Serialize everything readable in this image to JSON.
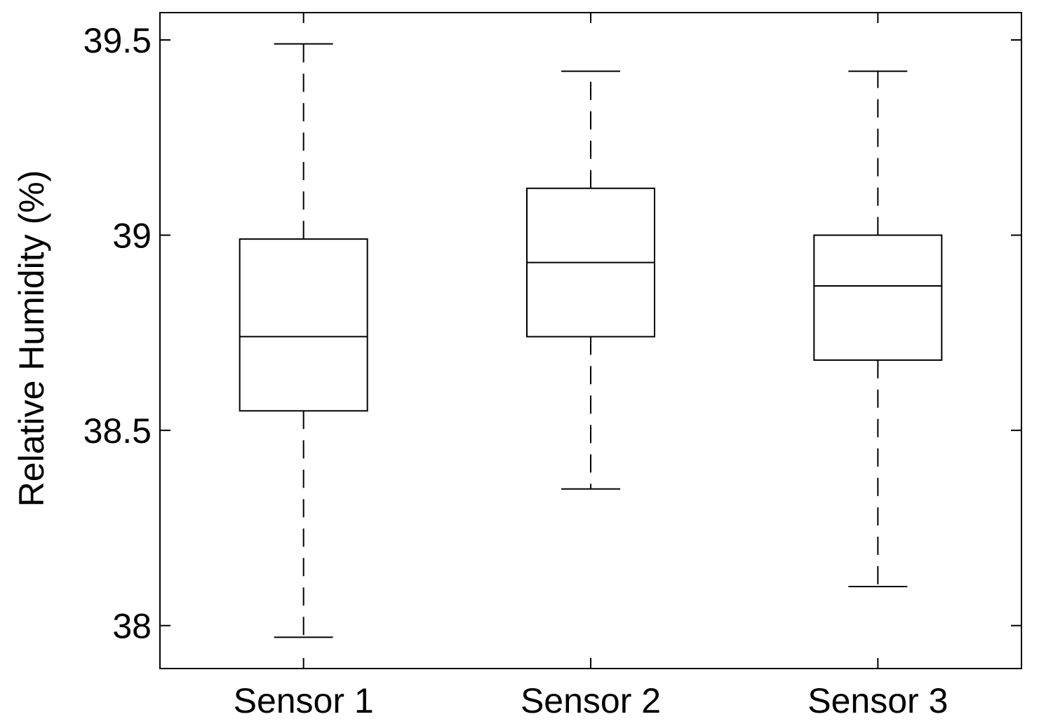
{
  "chart_data": {
    "type": "box",
    "categories": [
      "Sensor 1",
      "Sensor 2",
      "Sensor 3"
    ],
    "boxes": [
      {
        "category": "Sensor 1",
        "min": 37.97,
        "q1": 38.55,
        "median": 38.74,
        "q3": 38.99,
        "max": 39.49
      },
      {
        "category": "Sensor 2",
        "min": 38.35,
        "q1": 38.74,
        "median": 38.93,
        "q3": 39.12,
        "max": 39.42
      },
      {
        "category": "Sensor 3",
        "min": 38.1,
        "q1": 38.68,
        "median": 38.87,
        "q3": 39.0,
        "max": 39.42
      }
    ],
    "xlabel": "",
    "ylabel": "Relative Humidity (%)",
    "ylim": [
      37.89,
      39.57
    ],
    "yticks": [
      38,
      38.5,
      39,
      39.5
    ],
    "ytick_labels": [
      "38",
      "38.5",
      "39",
      "39.5"
    ],
    "grid": false,
    "colors": {
      "line": "#000000",
      "background": "#ffffff"
    }
  }
}
